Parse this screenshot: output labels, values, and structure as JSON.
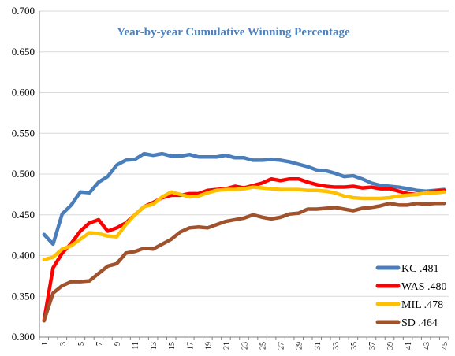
{
  "chart_data": {
    "type": "line",
    "title": "Year-by-year Cumulative Winning Percentage",
    "title_color": "#4f81bd",
    "xlabel": "",
    "ylabel": "",
    "x": [
      1,
      2,
      3,
      4,
      5,
      6,
      7,
      8,
      9,
      10,
      11,
      12,
      13,
      14,
      15,
      16,
      17,
      18,
      19,
      20,
      21,
      22,
      23,
      24,
      25,
      26,
      27,
      28,
      29,
      30,
      31,
      32,
      33,
      34,
      35,
      36,
      37,
      38,
      39,
      40,
      41,
      42,
      43,
      44,
      45
    ],
    "x_tick_labels": [
      "1",
      "3",
      "5",
      "7",
      "9",
      "11",
      "13",
      "15",
      "17",
      "19",
      "21",
      "23",
      "25",
      "27",
      "29",
      "31",
      "33",
      "35",
      "37",
      "39",
      "41",
      "43",
      "45"
    ],
    "y_tick_labels": [
      "0.300",
      "0.350",
      "0.400",
      "0.450",
      "0.500",
      "0.550",
      "0.600",
      "0.650",
      "0.700"
    ],
    "ylim": [
      0.3,
      0.7
    ],
    "grid": "horizontal",
    "legend_position": "bottom-right",
    "series": [
      {
        "name": "KC .481",
        "color": "#4a7ebb",
        "values": [
          0.426,
          0.414,
          0.451,
          0.462,
          0.478,
          0.477,
          0.49,
          0.497,
          0.511,
          0.517,
          0.518,
          0.525,
          0.523,
          0.525,
          0.522,
          0.522,
          0.524,
          0.521,
          0.521,
          0.521,
          0.523,
          0.52,
          0.52,
          0.517,
          0.517,
          0.518,
          0.517,
          0.515,
          0.512,
          0.509,
          0.505,
          0.504,
          0.501,
          0.497,
          0.498,
          0.494,
          0.489,
          0.486,
          0.485,
          0.484,
          0.482,
          0.48,
          0.479,
          0.48,
          0.481
        ]
      },
      {
        "name": "WAS .480",
        "color": "#ff0000",
        "values": [
          0.32,
          0.385,
          0.403,
          0.415,
          0.43,
          0.44,
          0.444,
          0.43,
          0.434,
          0.44,
          0.45,
          0.46,
          0.465,
          0.471,
          0.474,
          0.474,
          0.476,
          0.476,
          0.48,
          0.481,
          0.482,
          0.485,
          0.483,
          0.486,
          0.489,
          0.494,
          0.492,
          0.494,
          0.494,
          0.49,
          0.487,
          0.485,
          0.484,
          0.484,
          0.485,
          0.483,
          0.484,
          0.482,
          0.482,
          0.479,
          0.476,
          0.475,
          0.477,
          0.479,
          0.48
        ]
      },
      {
        "name": "MIL .478",
        "color": "#ffc000",
        "values": [
          0.395,
          0.398,
          0.408,
          0.412,
          0.42,
          0.428,
          0.427,
          0.424,
          0.423,
          0.438,
          0.45,
          0.46,
          0.463,
          0.472,
          0.478,
          0.475,
          0.472,
          0.473,
          0.477,
          0.48,
          0.481,
          0.481,
          0.482,
          0.484,
          0.483,
          0.482,
          0.481,
          0.481,
          0.481,
          0.48,
          0.48,
          0.479,
          0.477,
          0.473,
          0.471,
          0.47,
          0.47,
          0.47,
          0.471,
          0.473,
          0.474,
          0.475,
          0.477,
          0.477,
          0.478
        ]
      },
      {
        "name": "SD .464",
        "color": "#a0522d",
        "values": [
          0.32,
          0.354,
          0.363,
          0.368,
          0.368,
          0.369,
          0.378,
          0.387,
          0.39,
          0.403,
          0.405,
          0.409,
          0.408,
          0.414,
          0.42,
          0.429,
          0.434,
          0.435,
          0.434,
          0.438,
          0.442,
          0.444,
          0.446,
          0.45,
          0.447,
          0.445,
          0.447,
          0.451,
          0.452,
          0.457,
          0.457,
          0.458,
          0.459,
          0.457,
          0.455,
          0.458,
          0.459,
          0.461,
          0.464,
          0.462,
          0.462,
          0.464,
          0.463,
          0.464,
          0.464
        ]
      }
    ]
  }
}
